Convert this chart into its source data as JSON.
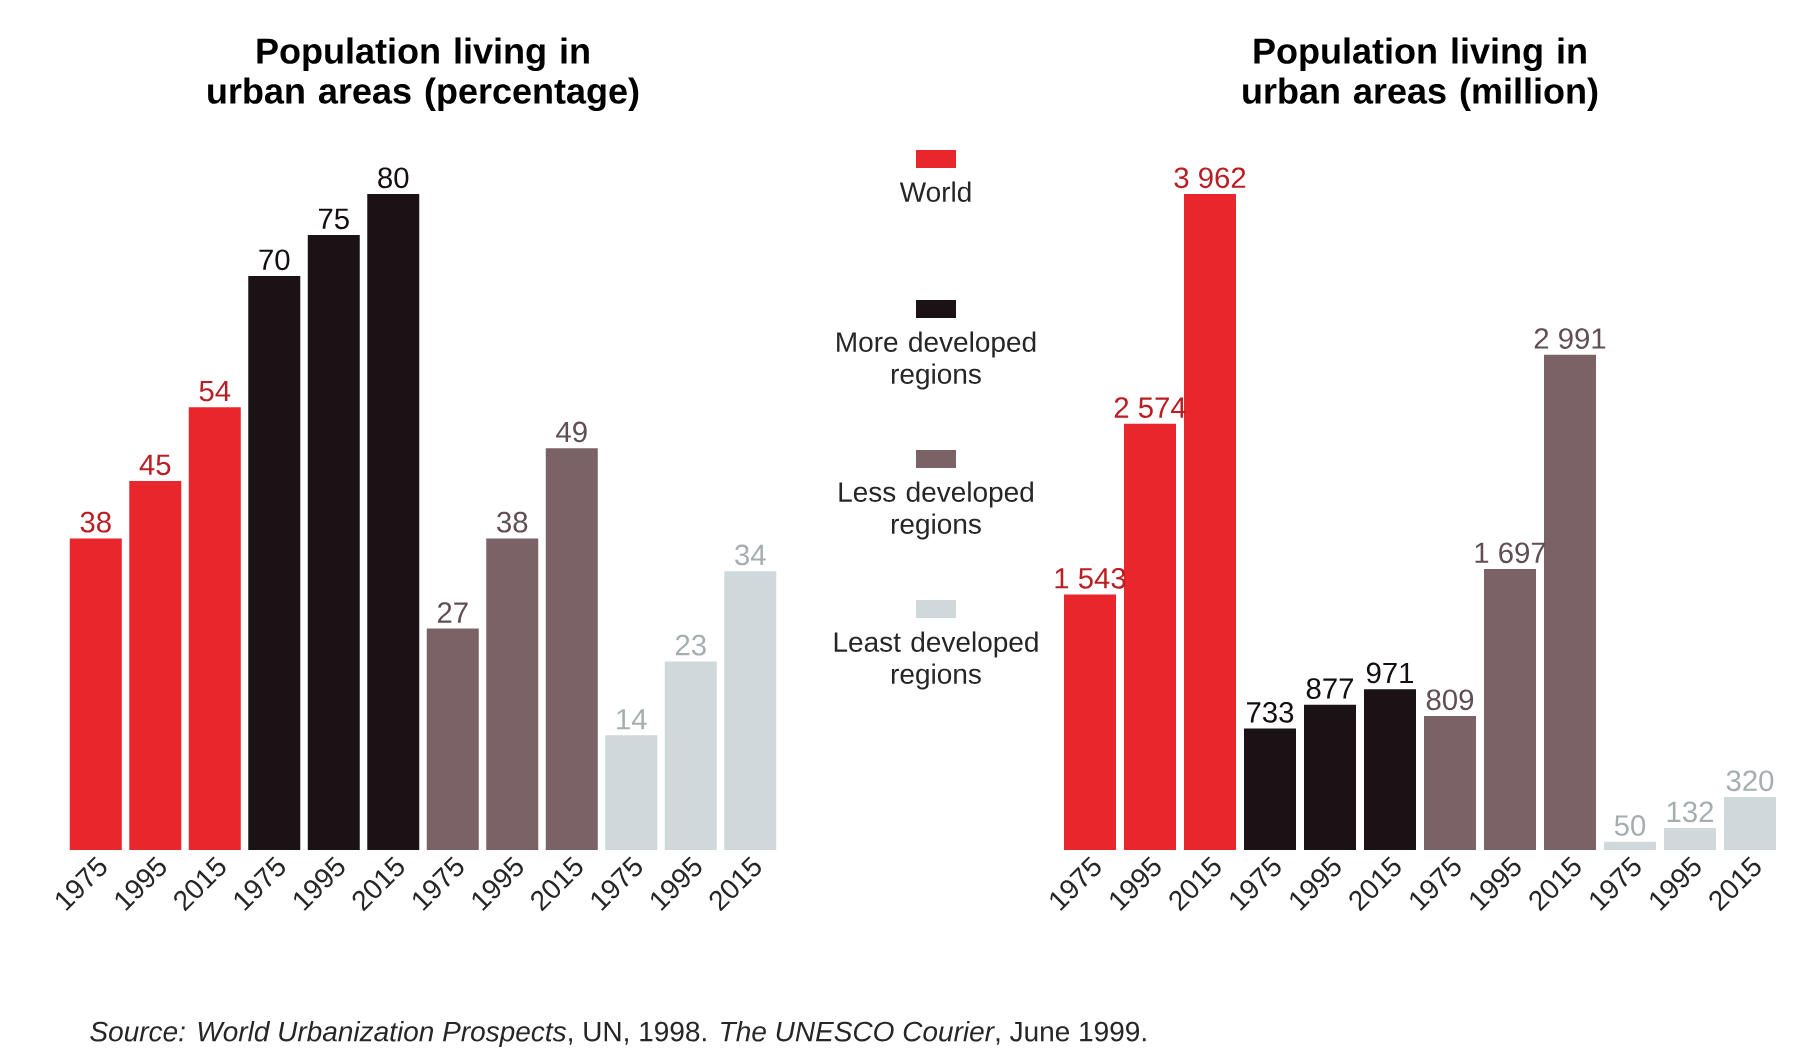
{
  "chart_data": [
    {
      "type": "bar",
      "title": "Population living in urban areas (percentage)",
      "categories": [
        "1975",
        "1995",
        "2015",
        "1975",
        "1995",
        "2015",
        "1975",
        "1995",
        "2015",
        "1975",
        "1995",
        "2015"
      ],
      "series": [
        {
          "name": "World",
          "color": "#e8262b",
          "values": [
            38,
            45,
            54,
            null,
            null,
            null,
            null,
            null,
            null,
            null,
            null,
            null
          ]
        },
        {
          "name": "More developed regions",
          "color": "#1a1214",
          "values": [
            null,
            null,
            null,
            70,
            75,
            80,
            null,
            null,
            null,
            null,
            null,
            null
          ]
        },
        {
          "name": "Less developed regions",
          "color": "#7a6266",
          "values": [
            null,
            null,
            null,
            null,
            null,
            null,
            27,
            38,
            49,
            null,
            null,
            null
          ]
        },
        {
          "name": "Least developed regions",
          "color": "#cfd8da",
          "values": [
            null,
            null,
            null,
            null,
            null,
            null,
            null,
            null,
            null,
            14,
            23,
            34
          ]
        }
      ],
      "data_labels": true,
      "legend": "right",
      "annotations": [
        "*Source:*   *World Urbanization Prospects*, UN, 1998. *The UNESCO Courier*, June 1999."
      ]
    },
    {
      "type": "bar",
      "title": "Population living in urban areas (million)",
      "categories": [
        "1975",
        "1995",
        "2015",
        "1975",
        "1995",
        "2015",
        "1975",
        "1995",
        "2015",
        "1975",
        "1995",
        "2015"
      ],
      "series": [
        {
          "color": "#e8262b",
          "values": [
            1543,
            2574,
            3962,
            null,
            null,
            null,
            null,
            null,
            null,
            null,
            null,
            null
          ],
          "value_labels": [
            "1 543",
            "2 574",
            "3 962",
            null,
            null,
            null,
            null,
            null,
            null,
            null,
            null,
            null
          ]
        },
        {
          "color": "#1a1214",
          "values": [
            null,
            null,
            null,
            733,
            877,
            971,
            null,
            null,
            null,
            null,
            null,
            null
          ],
          "value_labels": [
            null,
            null,
            null,
            "733",
            "877",
            "971",
            null,
            null,
            null,
            null,
            null,
            null
          ]
        },
        {
          "color": "#7a6266",
          "values": [
            null,
            null,
            null,
            null,
            null,
            null,
            809,
            1697,
            2991,
            null,
            null,
            null
          ],
          "value_labels": [
            null,
            null,
            null,
            null,
            null,
            null,
            "809",
            "1 697",
            "2 991",
            null,
            null,
            null
          ]
        },
        {
          "color": "#cfd8da",
          "values": [
            null,
            null,
            null,
            null,
            null,
            null,
            null,
            null,
            null,
            50,
            132,
            320
          ],
          "value_labels": [
            null,
            null,
            null,
            null,
            null,
            null,
            null,
            null,
            null,
            "50",
            "132",
            "320"
          ]
        }
      ]
    }
  ]
}
